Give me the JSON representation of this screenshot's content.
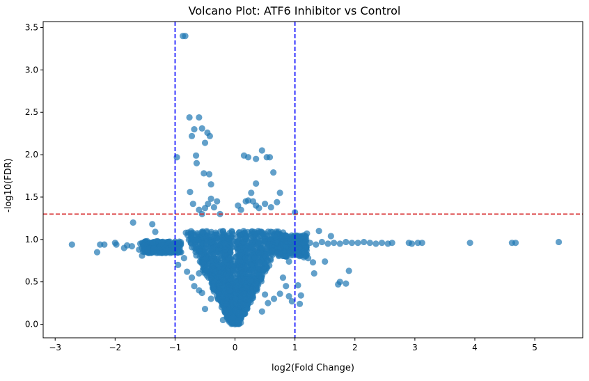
{
  "chart_data": {
    "type": "scatter",
    "title": "Volcano Plot: ATF6 Inhibitor vs Control",
    "xlabel": "log2(Fold Change)",
    "ylabel": "-log10(FDR)",
    "xlim": [
      -3.2,
      5.8
    ],
    "ylim": [
      -0.16,
      3.57
    ],
    "xticks": [
      -3,
      -2,
      -1,
      0,
      1,
      2,
      3,
      4,
      5
    ],
    "yticks": [
      0.0,
      0.5,
      1.0,
      1.5,
      2.0,
      2.5,
      3.0,
      3.5
    ],
    "xtick_labels": [
      "−3",
      "−2",
      "−1",
      "0",
      "1",
      "2",
      "3",
      "4",
      "5"
    ],
    "ytick_labels": [
      "0.0",
      "0.5",
      "1.0",
      "1.5",
      "2.0",
      "2.5",
      "3.0",
      "3.5"
    ],
    "fdr_threshold": 1.3,
    "fc_thresholds": [
      -1,
      1
    ],
    "point_color": "#1f77b4",
    "threshold_h_color": "#d62728",
    "threshold_v_color": "#0000ff",
    "points": [
      [
        -2.72,
        0.94
      ],
      [
        -2.3,
        0.85
      ],
      [
        -2.25,
        0.94
      ],
      [
        -2.18,
        0.94
      ],
      [
        -2.0,
        0.96
      ],
      [
        -1.98,
        0.94
      ],
      [
        -1.85,
        0.9
      ],
      [
        -1.8,
        0.93
      ],
      [
        -1.72,
        0.92
      ],
      [
        -1.7,
        1.2
      ],
      [
        -1.6,
        0.88
      ],
      [
        -1.58,
        0.95
      ],
      [
        -1.55,
        0.81
      ],
      [
        -1.5,
        0.94
      ],
      [
        -1.45,
        0.91
      ],
      [
        -1.4,
        0.95
      ],
      [
        -1.38,
        1.18
      ],
      [
        -1.33,
        1.09
      ],
      [
        -1.3,
        0.92
      ],
      [
        -1.25,
        0.96
      ],
      [
        -1.2,
        0.89
      ],
      [
        -1.15,
        0.94
      ],
      [
        -1.1,
        0.9
      ],
      [
        -1.05,
        0.95
      ],
      [
        -0.87,
        3.4
      ],
      [
        -0.83,
        3.4
      ],
      [
        -0.76,
        2.44
      ],
      [
        -0.72,
        2.22
      ],
      [
        -0.68,
        2.3
      ],
      [
        -0.6,
        2.44
      ],
      [
        -0.55,
        2.31
      ],
      [
        -0.5,
        2.14
      ],
      [
        -0.46,
        2.26
      ],
      [
        -0.42,
        2.22
      ],
      [
        -0.97,
        1.97
      ],
      [
        -0.65,
        1.99
      ],
      [
        -0.64,
        1.9
      ],
      [
        -0.52,
        1.78
      ],
      [
        -0.43,
        1.77
      ],
      [
        -0.4,
        1.65
      ],
      [
        -0.75,
        1.56
      ],
      [
        0.15,
        1.99
      ],
      [
        0.22,
        1.97
      ],
      [
        0.35,
        1.95
      ],
      [
        0.45,
        2.05
      ],
      [
        0.53,
        1.97
      ],
      [
        0.58,
        1.97
      ],
      [
        0.64,
        1.79
      ],
      [
        0.35,
        1.66
      ],
      [
        0.75,
        1.55
      ],
      [
        0.27,
        1.55
      ],
      [
        -0.7,
        1.42
      ],
      [
        -0.6,
        1.35
      ],
      [
        -0.55,
        1.3
      ],
      [
        -0.5,
        1.37
      ],
      [
        -0.45,
        1.42
      ],
      [
        -0.4,
        1.48
      ],
      [
        -0.35,
        1.38
      ],
      [
        -0.3,
        1.45
      ],
      [
        -0.25,
        1.3
      ],
      [
        0.05,
        1.4
      ],
      [
        0.1,
        1.35
      ],
      [
        0.18,
        1.45
      ],
      [
        0.22,
        1.46
      ],
      [
        0.3,
        1.45
      ],
      [
        0.35,
        1.4
      ],
      [
        0.4,
        1.37
      ],
      [
        0.5,
        1.42
      ],
      [
        0.6,
        1.38
      ],
      [
        0.7,
        1.44
      ],
      [
        1.0,
        1.32
      ],
      [
        1.4,
        1.1
      ],
      [
        1.6,
        1.04
      ],
      [
        1.2,
        1.07
      ],
      [
        1.1,
        0.99
      ],
      [
        1.15,
        0.95
      ],
      [
        1.25,
        0.96
      ],
      [
        1.35,
        0.94
      ],
      [
        1.45,
        0.97
      ],
      [
        1.55,
        0.95
      ],
      [
        1.65,
        0.96
      ],
      [
        1.75,
        0.95
      ],
      [
        1.85,
        0.97
      ],
      [
        1.95,
        0.96
      ],
      [
        2.05,
        0.96
      ],
      [
        2.15,
        0.97
      ],
      [
        2.25,
        0.96
      ],
      [
        2.35,
        0.95
      ],
      [
        2.45,
        0.96
      ],
      [
        2.55,
        0.95
      ],
      [
        2.62,
        0.96
      ],
      [
        2.9,
        0.96
      ],
      [
        2.95,
        0.95
      ],
      [
        3.05,
        0.96
      ],
      [
        3.12,
        0.96
      ],
      [
        3.92,
        0.96
      ],
      [
        4.62,
        0.96
      ],
      [
        4.68,
        0.96
      ],
      [
        5.4,
        0.97
      ],
      [
        1.72,
        0.47
      ],
      [
        1.75,
        0.5
      ],
      [
        1.85,
        0.48
      ],
      [
        1.9,
        0.63
      ],
      [
        1.5,
        0.74
      ],
      [
        1.3,
        0.73
      ],
      [
        1.32,
        0.6
      ],
      [
        1.22,
        0.78
      ],
      [
        1.05,
        0.46
      ],
      [
        1.1,
        0.34
      ],
      [
        1.08,
        0.24
      ],
      [
        1.15,
        0.79
      ],
      [
        -0.95,
        0.7
      ],
      [
        -0.85,
        0.78
      ],
      [
        -0.9,
        0.85
      ],
      [
        -0.8,
        0.62
      ],
      [
        -0.72,
        0.55
      ],
      [
        -0.68,
        0.45
      ],
      [
        -0.6,
        0.4
      ],
      [
        -0.55,
        0.37
      ],
      [
        -0.5,
        0.18
      ],
      [
        -0.6,
        0.6
      ],
      [
        -0.4,
        0.3
      ],
      [
        0.9,
        0.74
      ],
      [
        0.8,
        0.55
      ],
      [
        0.85,
        0.45
      ],
      [
        0.75,
        0.36
      ],
      [
        0.65,
        0.3
      ],
      [
        0.55,
        0.25
      ],
      [
        0.45,
        0.15
      ],
      [
        0.5,
        0.35
      ],
      [
        0.9,
        0.33
      ],
      [
        0.95,
        0.27
      ],
      [
        -0.1,
        0.05
      ],
      [
        -0.2,
        0.05
      ],
      [
        0.05,
        0.04
      ],
      [
        0.1,
        0.07
      ],
      [
        -0.05,
        0.02
      ],
      [
        0.0,
        0.0
      ],
      [
        0.12,
        0.12
      ],
      [
        -0.12,
        0.1
      ]
    ]
  }
}
